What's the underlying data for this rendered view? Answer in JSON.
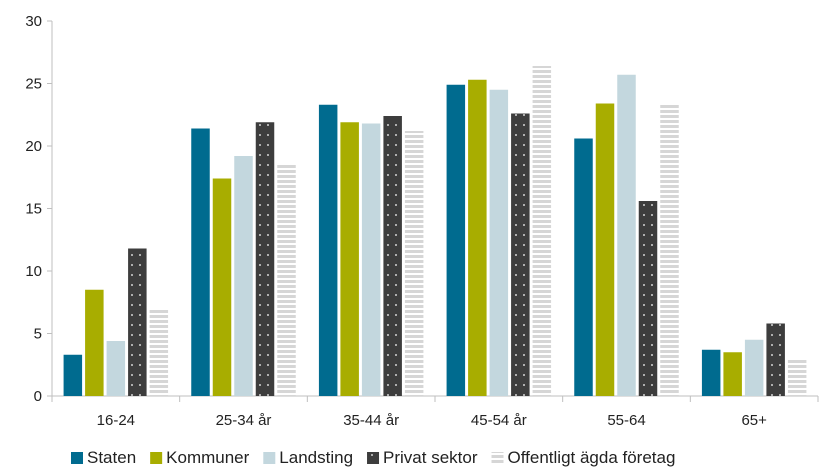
{
  "chart_data": {
    "type": "bar",
    "title": "",
    "xlabel": "",
    "ylabel": "",
    "ylim": [
      0,
      30
    ],
    "yticks": [
      0,
      5,
      10,
      15,
      20,
      25,
      30
    ],
    "grid": false,
    "legend_position": "bottom",
    "categories": [
      "16-24",
      "25-34 år",
      "35-44 år",
      "45-54 år",
      "55-64",
      "65+"
    ],
    "series": [
      {
        "name": "Staten",
        "color": "#006b8f",
        "pattern": "solid",
        "values": [
          3.3,
          21.4,
          23.3,
          24.9,
          20.6,
          3.7
        ]
      },
      {
        "name": "Kommuner",
        "color": "#a8ad00",
        "pattern": "solid",
        "values": [
          8.5,
          17.4,
          21.9,
          25.3,
          23.4,
          3.5
        ]
      },
      {
        "name": "Landsting",
        "color": "#c3d7de",
        "pattern": "solid",
        "values": [
          4.4,
          19.2,
          21.8,
          24.5,
          25.7,
          4.5
        ]
      },
      {
        "name": "Privat sektor",
        "color": "#3d3d3d",
        "pattern": "dots",
        "values": [
          11.8,
          21.9,
          22.4,
          22.6,
          15.6,
          5.8
        ]
      },
      {
        "name": "Offentligt ägda företag",
        "color": "#d6d6d6",
        "pattern": "stripes",
        "values": [
          7.0,
          18.6,
          21.2,
          26.4,
          23.3,
          2.9
        ]
      }
    ]
  }
}
